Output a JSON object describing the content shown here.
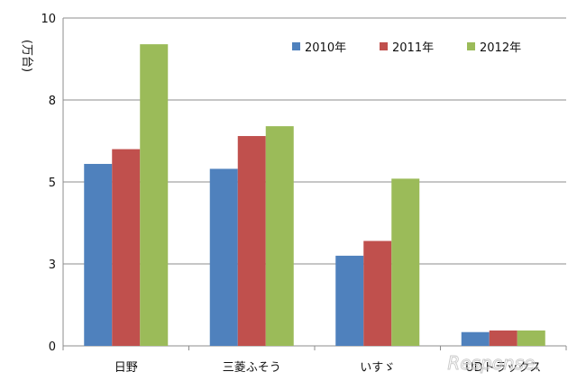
{
  "chart_data": {
    "type": "bar",
    "title": "",
    "xlabel": "",
    "ylabel": "(万台)",
    "ylim": [
      0,
      10
    ],
    "yticks": [
      0,
      3,
      5,
      8,
      10
    ],
    "ytick_values": [
      0,
      2.5,
      5,
      7.5,
      10
    ],
    "grid": true,
    "legend_position": "top-right",
    "categories": [
      "日野",
      "三菱ふそう",
      "いすゞ",
      "UDトラックス"
    ],
    "series": [
      {
        "name": "2010年",
        "color": "#4f81bd",
        "values": [
          5.55,
          5.4,
          2.75,
          0.42
        ]
      },
      {
        "name": "2011年",
        "color": "#c0504d",
        "values": [
          6.0,
          6.4,
          3.2,
          0.47
        ]
      },
      {
        "name": "2012年",
        "color": "#9bbb59",
        "values": [
          9.2,
          6.7,
          5.1,
          0.47
        ]
      }
    ]
  },
  "watermark": "Response."
}
